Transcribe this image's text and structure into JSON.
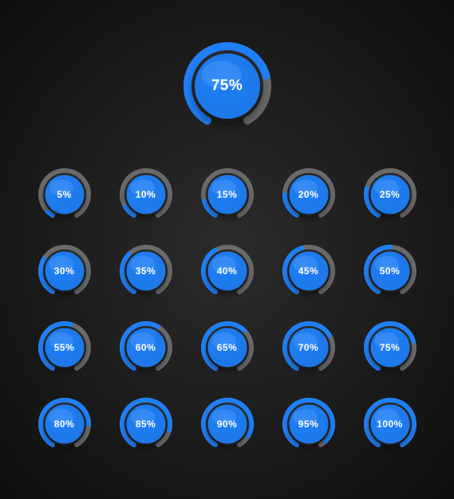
{
  "background": {
    "inner": "#2c2c2c",
    "outer": "#0e0e0e"
  },
  "gauge_style": {
    "fill_color": "#1f80f9",
    "track_color": "#6a6a6a",
    "ring_gap_color": "#2a2a2a",
    "text_color": "#ffffff",
    "start_angle_deg": -240,
    "sweep_deg": 300,
    "large": {
      "size": 120,
      "outer_r": 55,
      "inner_r": 45,
      "fill_r": 41,
      "shadow_blur": 14,
      "shadow_dy": 8,
      "font_size": 19
    },
    "small": {
      "size": 72,
      "outer_r": 33,
      "inner_r": 27,
      "fill_r": 24.5,
      "shadow_blur": 9,
      "shadow_dy": 5,
      "font_size": 12
    }
  },
  "hero": {
    "value": 75,
    "label": "75%"
  },
  "grid": [
    {
      "value": 5,
      "label": "5%"
    },
    {
      "value": 10,
      "label": "10%"
    },
    {
      "value": 15,
      "label": "15%"
    },
    {
      "value": 20,
      "label": "20%"
    },
    {
      "value": 25,
      "label": "25%"
    },
    {
      "value": 30,
      "label": "30%"
    },
    {
      "value": 35,
      "label": "35%"
    },
    {
      "value": 40,
      "label": "40%"
    },
    {
      "value": 45,
      "label": "45%"
    },
    {
      "value": 50,
      "label": "50%"
    },
    {
      "value": 55,
      "label": "55%"
    },
    {
      "value": 60,
      "label": "60%"
    },
    {
      "value": 65,
      "label": "65%"
    },
    {
      "value": 70,
      "label": "70%"
    },
    {
      "value": 75,
      "label": "75%"
    },
    {
      "value": 80,
      "label": "80%"
    },
    {
      "value": 85,
      "label": "85%"
    },
    {
      "value": 90,
      "label": "90%"
    },
    {
      "value": 95,
      "label": "95%"
    },
    {
      "value": 100,
      "label": "100%"
    }
  ]
}
